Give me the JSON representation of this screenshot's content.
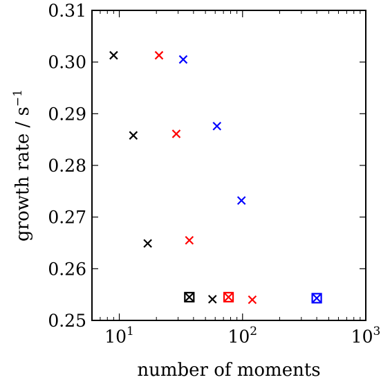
{
  "chart_data": {
    "type": "scatter",
    "xlabel": "number of moments",
    "ylabel_main": "growth rate / s",
    "ylabel_sup": "−1",
    "xscale": "log",
    "xlim": [
      6,
      1000
    ],
    "ylim": [
      0.25,
      0.31
    ],
    "yticks": [
      {
        "value": 0.25,
        "label": "0.25"
      },
      {
        "value": 0.26,
        "label": "0.26"
      },
      {
        "value": 0.27,
        "label": "0.27"
      },
      {
        "value": 0.28,
        "label": "0.28"
      },
      {
        "value": 0.29,
        "label": "0.29"
      },
      {
        "value": 0.3,
        "label": "0.30"
      },
      {
        "value": 0.31,
        "label": "0.31"
      }
    ],
    "xticks": [
      {
        "value": 10,
        "base": "10",
        "exp": "1"
      },
      {
        "value": 100,
        "base": "10",
        "exp": "2"
      },
      {
        "value": 1000,
        "base": "10",
        "exp": "3"
      }
    ],
    "grid": false,
    "series": [
      {
        "color": "#000000",
        "points": [
          {
            "x": 9,
            "y": 0.3013,
            "marker": "x"
          },
          {
            "x": 13,
            "y": 0.2858,
            "marker": "x"
          },
          {
            "x": 17,
            "y": 0.2649,
            "marker": "x"
          },
          {
            "x": 57,
            "y": 0.2541,
            "marker": "x"
          },
          {
            "x": 37,
            "y": 0.2545,
            "marker": "boxed-x"
          }
        ]
      },
      {
        "color": "#ff0000",
        "points": [
          {
            "x": 21,
            "y": 0.3013,
            "marker": "x"
          },
          {
            "x": 29,
            "y": 0.2861,
            "marker": "x"
          },
          {
            "x": 37,
            "y": 0.2655,
            "marker": "x"
          },
          {
            "x": 120,
            "y": 0.254,
            "marker": "x"
          },
          {
            "x": 77,
            "y": 0.2545,
            "marker": "boxed-x"
          }
        ]
      },
      {
        "color": "#0000ff",
        "points": [
          {
            "x": 33,
            "y": 0.3005,
            "marker": "x"
          },
          {
            "x": 62,
            "y": 0.2876,
            "marker": "x"
          },
          {
            "x": 98,
            "y": 0.2732,
            "marker": "x"
          },
          {
            "x": 400,
            "y": 0.2543,
            "marker": "boxed-x"
          }
        ]
      }
    ]
  }
}
